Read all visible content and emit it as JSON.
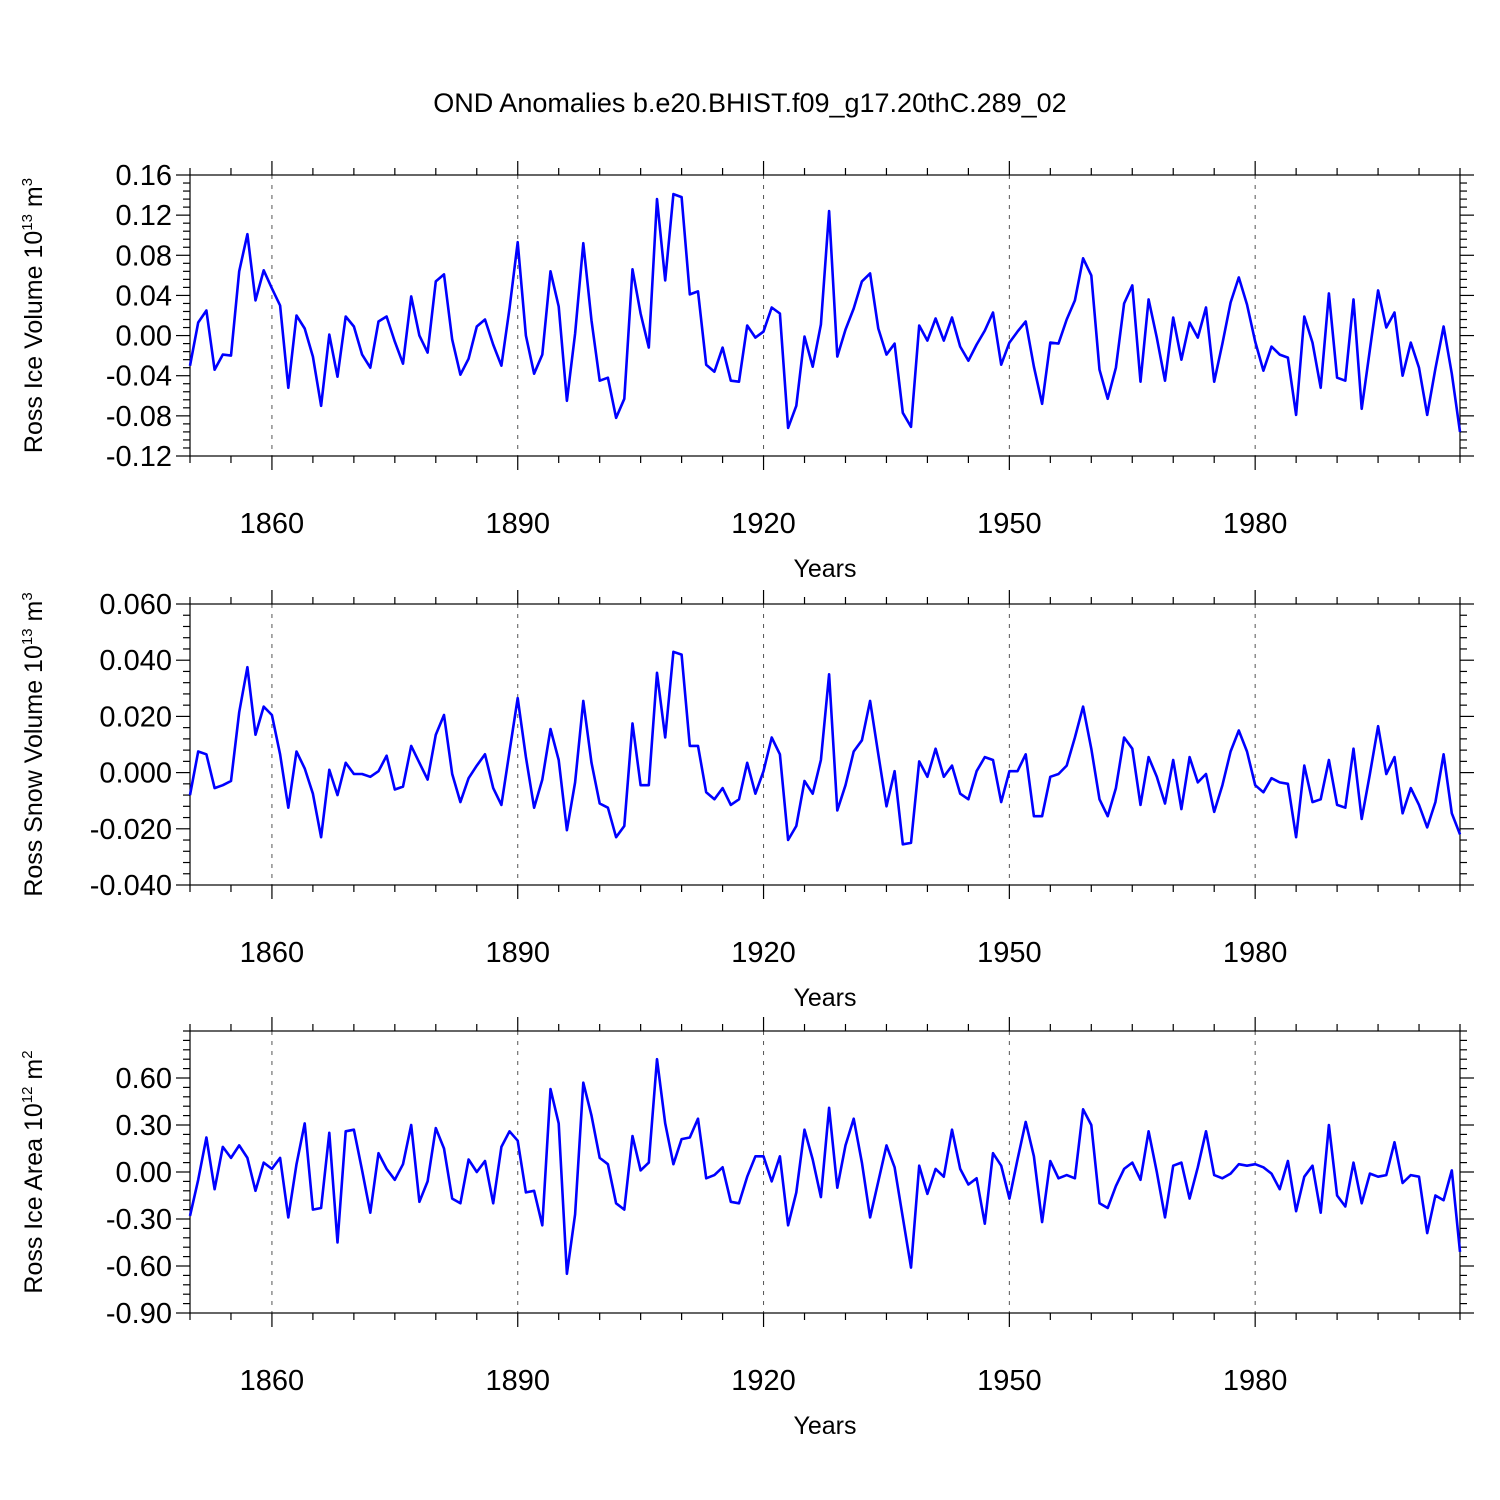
{
  "title": "OND Anomalies b.e20.BHIST.f09_g17.20thC.289_02",
  "chart_data": [
    {
      "type": "line",
      "name": "ice-volume",
      "xlabel": "Years",
      "ylabel_main": "Ross Ice Volume 10",
      "ylabel_exp": "13",
      "ylabel_unit": " m",
      "ylabel_unit_exp": "3",
      "xlim": [
        1850,
        2005
      ],
      "ylim": [
        -0.12,
        0.16
      ],
      "yticks": [
        -0.12,
        -0.08,
        -0.04,
        0.0,
        0.04,
        0.08,
        0.12,
        0.16
      ],
      "ytick_labels": [
        "-0.12",
        "-0.08",
        "-0.04",
        "0.00",
        "0.04",
        "0.08",
        "0.12",
        "0.16"
      ],
      "xticks": [
        1860,
        1890,
        1920,
        1950,
        1980
      ],
      "xtick_labels": [
        "1860",
        "1890",
        "1920",
        "1950",
        "1980"
      ],
      "series": [
        {
          "name": "Ross Ice Volume",
          "color": "#0000ff",
          "x_start": 1850,
          "values": [
            -0.03,
            0.013,
            0.025,
            -0.034,
            -0.019,
            -0.02,
            0.064,
            0.101,
            0.035,
            0.065,
            0.047,
            0.03,
            -0.052,
            0.02,
            0.007,
            -0.021,
            -0.07,
            0.001,
            -0.041,
            0.019,
            0.009,
            -0.019,
            -0.032,
            0.014,
            0.019,
            -0.006,
            -0.028,
            0.039,
            0.0,
            -0.017,
            0.054,
            0.061,
            -0.004,
            -0.039,
            -0.023,
            0.009,
            0.016,
            -0.009,
            -0.03,
            0.027,
            0.093,
            0.0,
            -0.038,
            -0.019,
            0.064,
            0.029,
            -0.065,
            0.002,
            0.092,
            0.015,
            -0.045,
            -0.042,
            -0.082,
            -0.063,
            0.066,
            0.022,
            -0.012,
            0.136,
            0.055,
            0.141,
            0.138,
            0.041,
            0.044,
            -0.029,
            -0.036,
            -0.012,
            -0.045,
            -0.046,
            0.01,
            -0.002,
            0.004,
            0.028,
            0.022,
            -0.092,
            -0.07,
            -0.001,
            -0.031,
            0.011,
            0.124,
            -0.021,
            0.006,
            0.027,
            0.054,
            0.062,
            0.007,
            -0.019,
            -0.008,
            -0.077,
            -0.091,
            0.01,
            -0.005,
            0.017,
            -0.005,
            0.018,
            -0.011,
            -0.025,
            -0.009,
            0.005,
            0.023,
            -0.029,
            -0.007,
            0.004,
            0.014,
            -0.031,
            -0.068,
            -0.007,
            -0.008,
            0.016,
            0.035,
            0.077,
            0.06,
            -0.034,
            -0.063,
            -0.032,
            0.032,
            0.05,
            -0.046,
            0.036,
            -0.002,
            -0.045,
            0.018,
            -0.024,
            0.013,
            -0.002,
            0.028,
            -0.046,
            -0.008,
            0.033,
            0.058,
            0.031,
            -0.006,
            -0.035,
            -0.011,
            -0.019,
            -0.022,
            -0.079,
            0.019,
            -0.007,
            -0.052,
            0.042,
            -0.042,
            -0.045,
            0.036,
            -0.073,
            -0.014,
            0.045,
            0.008,
            0.023,
            -0.04,
            -0.007,
            -0.032,
            -0.079,
            -0.033,
            0.009,
            -0.038,
            -0.096
          ]
        }
      ]
    },
    {
      "type": "line",
      "name": "snow-volume",
      "xlabel": "Years",
      "ylabel_main": "Ross Snow Volume 10",
      "ylabel_exp": "13",
      "ylabel_unit": " m",
      "ylabel_unit_exp": "3",
      "xlim": [
        1850,
        2005
      ],
      "ylim": [
        -0.04,
        0.06
      ],
      "yticks": [
        -0.04,
        -0.02,
        0.0,
        0.02,
        0.04,
        0.06
      ],
      "ytick_labels": [
        "-0.040",
        "-0.020",
        "0.000",
        "0.020",
        "0.040",
        "0.060"
      ],
      "xticks": [
        1860,
        1890,
        1920,
        1950,
        1980
      ],
      "xtick_labels": [
        "1860",
        "1890",
        "1920",
        "1950",
        "1980"
      ],
      "series": [
        {
          "name": "Ross Snow Volume",
          "color": "#0000ff",
          "x_start": 1850,
          "values": [
            -0.008,
            0.0075,
            0.0065,
            -0.0055,
            -0.0045,
            -0.003,
            0.0215,
            0.0375,
            0.0135,
            0.0235,
            0.0205,
            0.0065,
            -0.0125,
            0.0075,
            0.0015,
            -0.0075,
            -0.023,
            0.001,
            -0.008,
            0.0035,
            -0.0005,
            -0.0005,
            -0.0015,
            0.0005,
            0.006,
            -0.006,
            -0.005,
            0.0095,
            0.0035,
            -0.0025,
            0.0135,
            0.0205,
            -0.0005,
            -0.0105,
            -0.002,
            0.0025,
            0.0065,
            -0.0055,
            -0.0115,
            0.0075,
            0.0265,
            0.0055,
            -0.0125,
            -0.0025,
            0.0155,
            0.0045,
            -0.0205,
            -0.0035,
            0.0255,
            0.0035,
            -0.011,
            -0.0125,
            -0.023,
            -0.019,
            0.0175,
            -0.0045,
            -0.0045,
            0.0355,
            0.0125,
            0.043,
            0.042,
            0.0095,
            0.0095,
            -0.007,
            -0.0095,
            -0.0055,
            -0.0115,
            -0.0095,
            0.0035,
            -0.0075,
            0.0005,
            0.0125,
            0.0065,
            -0.024,
            -0.019,
            -0.003,
            -0.0075,
            0.0045,
            0.035,
            -0.0135,
            -0.0045,
            0.0075,
            0.0115,
            0.0255,
            0.0065,
            -0.012,
            0.0005,
            -0.0255,
            -0.025,
            0.004,
            -0.0015,
            0.0085,
            -0.0015,
            0.0025,
            -0.0075,
            -0.0095,
            0.0005,
            0.0055,
            0.0045,
            -0.0105,
            0.0005,
            0.0005,
            0.0065,
            -0.0155,
            -0.0155,
            -0.0015,
            -0.0005,
            0.0025,
            0.0125,
            0.0235,
            0.0085,
            -0.0095,
            -0.0155,
            -0.0055,
            0.0125,
            0.0085,
            -0.0115,
            0.0055,
            -0.0015,
            -0.011,
            0.0045,
            -0.013,
            0.0055,
            -0.0035,
            -0.0005,
            -0.014,
            -0.0045,
            0.0075,
            0.015,
            0.0075,
            -0.0045,
            -0.007,
            -0.002,
            -0.0035,
            -0.004,
            -0.023,
            0.0025,
            -0.0105,
            -0.0095,
            0.0045,
            -0.0115,
            -0.0125,
            0.0085,
            -0.0165,
            -0.0005,
            0.0165,
            -0.0005,
            0.0055,
            -0.0145,
            -0.0055,
            -0.0115,
            -0.0195,
            -0.0105,
            0.0065,
            -0.0145,
            -0.022
          ]
        }
      ]
    },
    {
      "type": "line",
      "name": "ice-area",
      "xlabel": "Years",
      "ylabel_main": "Ross Ice Area 10",
      "ylabel_exp": "12",
      "ylabel_unit": " m",
      "ylabel_unit_exp": "2",
      "xlim": [
        1850,
        2005
      ],
      "ylim": [
        -0.9,
        0.9
      ],
      "yticks": [
        -0.9,
        -0.6,
        -0.3,
        0.0,
        0.3,
        0.6
      ],
      "ytick_labels": [
        "-0.90",
        "-0.60",
        "-0.30",
        "0.00",
        "0.30",
        "0.60"
      ],
      "xticks": [
        1860,
        1890,
        1920,
        1950,
        1980
      ],
      "xtick_labels": [
        "1860",
        "1890",
        "1920",
        "1950",
        "1980"
      ],
      "series": [
        {
          "name": "Ross Ice Area",
          "color": "#0000ff",
          "x_start": 1850,
          "values": [
            -0.28,
            -0.05,
            0.22,
            -0.11,
            0.16,
            0.09,
            0.17,
            0.09,
            -0.12,
            0.06,
            0.02,
            0.09,
            -0.29,
            0.05,
            0.31,
            -0.24,
            -0.23,
            0.25,
            -0.45,
            0.26,
            0.27,
            0.01,
            -0.26,
            0.12,
            0.02,
            -0.05,
            0.05,
            0.3,
            -0.19,
            -0.06,
            0.28,
            0.15,
            -0.17,
            -0.2,
            0.08,
            0.0,
            0.07,
            -0.2,
            0.16,
            0.26,
            0.2,
            -0.13,
            -0.12,
            -0.34,
            0.53,
            0.31,
            -0.65,
            -0.27,
            0.57,
            0.36,
            0.09,
            0.05,
            -0.2,
            -0.24,
            0.23,
            0.01,
            0.06,
            0.72,
            0.31,
            0.05,
            0.21,
            0.22,
            0.34,
            -0.04,
            -0.02,
            0.03,
            -0.19,
            -0.2,
            -0.03,
            0.1,
            0.1,
            -0.06,
            0.1,
            -0.34,
            -0.13,
            0.27,
            0.08,
            -0.16,
            0.41,
            -0.1,
            0.17,
            0.34,
            0.06,
            -0.29,
            -0.06,
            0.17,
            0.03,
            -0.29,
            -0.61,
            0.04,
            -0.14,
            0.02,
            -0.03,
            0.27,
            0.02,
            -0.08,
            -0.04,
            -0.33,
            0.12,
            0.04,
            -0.17,
            0.08,
            0.32,
            0.1,
            -0.32,
            0.07,
            -0.04,
            -0.02,
            -0.04,
            0.4,
            0.3,
            -0.2,
            -0.23,
            -0.09,
            0.02,
            0.06,
            -0.05,
            0.26,
            0.0,
            -0.29,
            0.04,
            0.06,
            -0.17,
            0.03,
            0.26,
            -0.02,
            -0.04,
            -0.01,
            0.05,
            0.04,
            0.05,
            0.03,
            -0.01,
            -0.11,
            0.07,
            -0.25,
            -0.03,
            0.04,
            -0.26,
            0.3,
            -0.15,
            -0.22,
            0.06,
            -0.2,
            -0.01,
            -0.03,
            -0.02,
            0.19,
            -0.07,
            -0.02,
            -0.03,
            -0.39,
            -0.15,
            -0.18,
            0.01,
            -0.51
          ]
        }
      ]
    }
  ]
}
